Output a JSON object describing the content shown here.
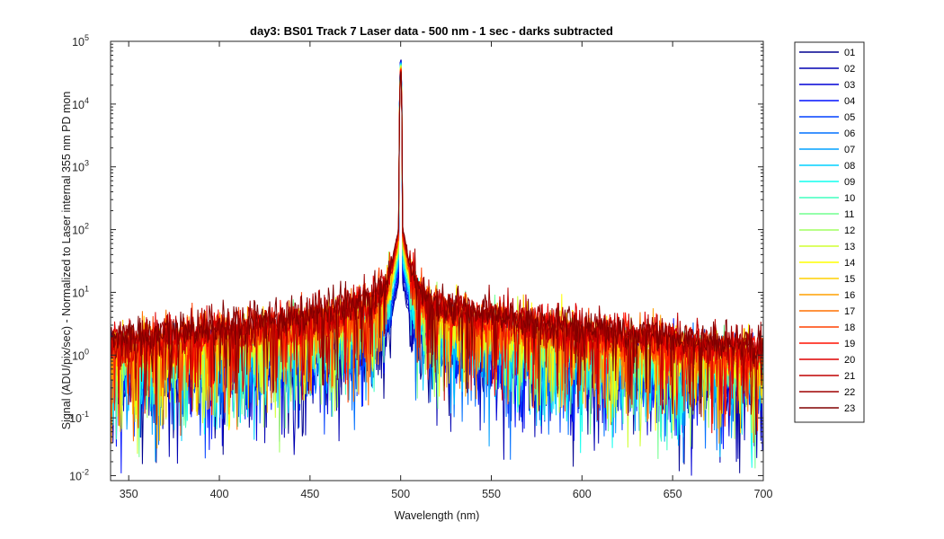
{
  "chart_data": {
    "type": "line",
    "title": "day3: BS01  Track 7 Laser data - 500 nm - 1 sec - darks subtracted",
    "xlabel": "Wavelength (nm)",
    "ylabel": "Signal (ADU/pix/sec) - Normalized to Laser internal 355 nm PD mon",
    "xlim": [
      340,
      700
    ],
    "ylim": [
      0.01,
      100000
    ],
    "yscale": "log",
    "x_ticks": [
      350,
      400,
      450,
      500,
      550,
      600,
      650,
      700
    ],
    "y_ticks": [
      {
        "base": "10",
        "exp": "-2",
        "value": 0.01
      },
      {
        "base": "10",
        "exp": "-1",
        "value": 0.1
      },
      {
        "base": "10",
        "exp": "0",
        "value": 1
      },
      {
        "base": "10",
        "exp": "1",
        "value": 10
      },
      {
        "base": "10",
        "exp": "2",
        "value": 100
      },
      {
        "base": "10",
        "exp": "3",
        "value": 1000
      },
      {
        "base": "10",
        "exp": "4",
        "value": 10000
      },
      {
        "base": "10",
        "exp": "5",
        "value": 100000
      }
    ],
    "grid": false,
    "legend_position": "outside-right",
    "peak_wavelength": 500,
    "series": [
      {
        "name": "01",
        "color": "#00008f",
        "peak": 60000,
        "wing": 0.3
      },
      {
        "name": "02",
        "color": "#0000b2",
        "peak": 59000,
        "wing": 0.35
      },
      {
        "name": "03",
        "color": "#0000d5",
        "peak": 58000,
        "wing": 0.4
      },
      {
        "name": "04",
        "color": "#0010ff",
        "peak": 57000,
        "wing": 0.46
      },
      {
        "name": "05",
        "color": "#0040ff",
        "peak": 56000,
        "wing": 0.52
      },
      {
        "name": "06",
        "color": "#0070ff",
        "peak": 55000,
        "wing": 0.58
      },
      {
        "name": "07",
        "color": "#00a0ff",
        "peak": 54000,
        "wing": 0.65
      },
      {
        "name": "08",
        "color": "#00d0ff",
        "peak": 53000,
        "wing": 0.72
      },
      {
        "name": "09",
        "color": "#10ffef",
        "peak": 52000,
        "wing": 0.8
      },
      {
        "name": "10",
        "color": "#40ffbf",
        "peak": 51000,
        "wing": 0.88
      },
      {
        "name": "11",
        "color": "#70ff8f",
        "peak": 50000,
        "wing": 0.96
      },
      {
        "name": "12",
        "color": "#a0ff60",
        "peak": 49000,
        "wing": 1.05
      },
      {
        "name": "13",
        "color": "#d0ff30",
        "peak": 48000,
        "wing": 1.14
      },
      {
        "name": "14",
        "color": "#ffff00",
        "peak": 47000,
        "wing": 1.24
      },
      {
        "name": "15",
        "color": "#ffd000",
        "peak": 46000,
        "wing": 1.34
      },
      {
        "name": "16",
        "color": "#ffa000",
        "peak": 45000,
        "wing": 1.45
      },
      {
        "name": "17",
        "color": "#ff7000",
        "peak": 44000,
        "wing": 1.56
      },
      {
        "name": "18",
        "color": "#ff4000",
        "peak": 43000,
        "wing": 1.68
      },
      {
        "name": "19",
        "color": "#ff1000",
        "peak": 42000,
        "wing": 1.8
      },
      {
        "name": "20",
        "color": "#df0000",
        "peak": 41000,
        "wing": 1.92
      },
      {
        "name": "21",
        "color": "#bf0000",
        "peak": 40000,
        "wing": 2.05
      },
      {
        "name": "22",
        "color": "#9f0000",
        "peak": 39000,
        "wing": 2.18
      },
      {
        "name": "23",
        "color": "#800000",
        "peak": 38000,
        "wing": 2.3
      }
    ]
  }
}
